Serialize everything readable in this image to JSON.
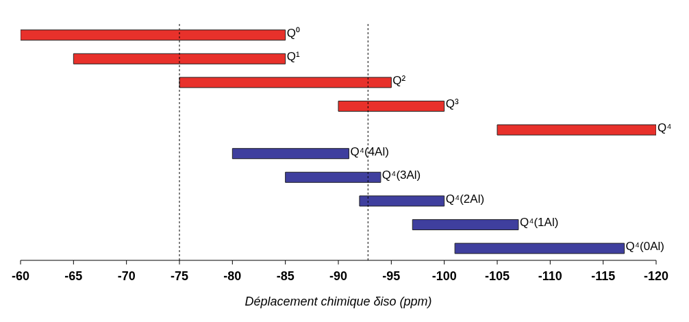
{
  "chart_data": {
    "type": "bar",
    "orientation": "horizontal",
    "xlabel": "Déplacement chimique δiso (ppm)",
    "categories": [
      "Q⁰",
      "Q¹",
      "Q²",
      "Q³",
      "Q⁴",
      "Q⁴(4Al)",
      "Q⁴(3Al)",
      "Q⁴(2Al)",
      "Q⁴(1Al)",
      "Q⁴(0Al)"
    ],
    "base": [
      -60,
      -65,
      -75,
      -90,
      -105,
      -80,
      -85,
      -92,
      -97,
      -101
    ],
    "values": [
      -25,
      -20,
      -20,
      -10,
      -15,
      -11,
      -9,
      -8,
      -10,
      -16
    ],
    "colors": [
      "#e8312b",
      "#e8312b",
      "#e8312b",
      "#e8312b",
      "#e8312b",
      "#3f3f9e",
      "#3f3f9e",
      "#3f3f9e",
      "#3f3f9e",
      "#3f3f9e"
    ],
    "xlim": [
      -60,
      -120
    ],
    "xticks": [
      -60,
      -65,
      -70,
      -75,
      -80,
      -85,
      -90,
      -95,
      -100,
      -105,
      -110,
      -115,
      -120
    ],
    "ref_lines": [
      {
        "axis": "x",
        "value": -75,
        "line_style": "dotted",
        "color": "#000000"
      },
      {
        "axis": "x",
        "value": -92.8,
        "line_style": "dotted",
        "color": "#000000"
      }
    ],
    "tick_labels": "x",
    "grid": false,
    "legend": false
  }
}
